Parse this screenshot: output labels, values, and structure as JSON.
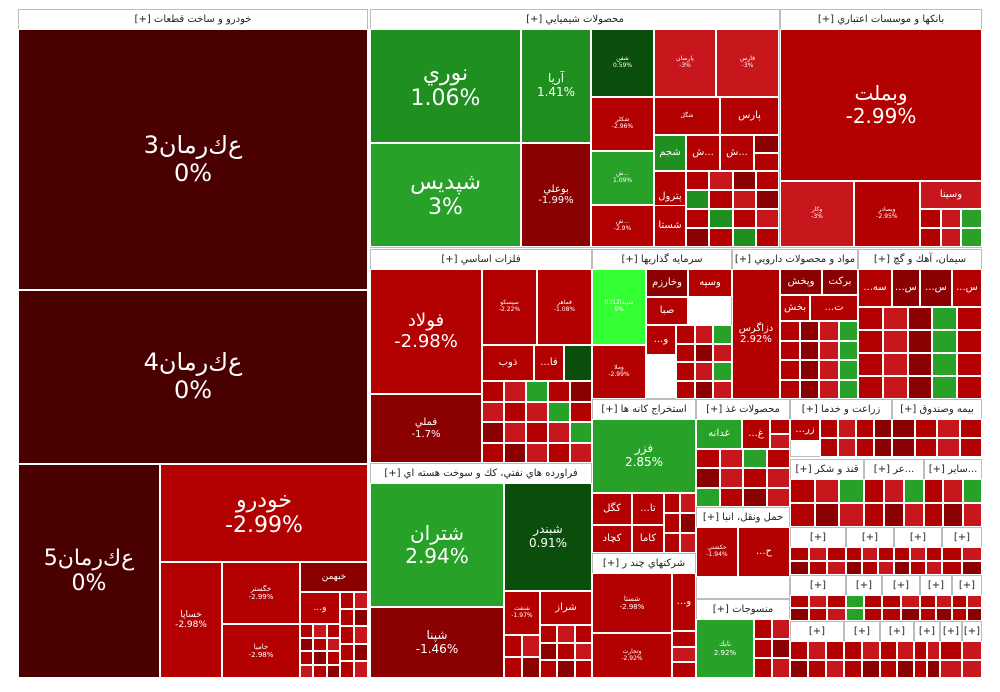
{
  "chart_data": {
    "type": "treemap",
    "colors": {
      "strong_negative": "#b30000",
      "negative": "#c8161d",
      "mid_negative": "#8b0000",
      "zero": "#4a0000",
      "positive": "#1f8f1f",
      "strong_positive": "#27a127",
      "neon_positive": "#33ff33",
      "dark_positive": "#0b4d0b"
    },
    "sectors": [
      {
        "id": "auto",
        "title": "خودرو و ساخت قطعات [+]",
        "tiles": [
          {
            "id": "t-khrman3",
            "name": "ﻉﻙﺭﻣﺎﻥ3",
            "value": "0%",
            "font": 24
          },
          {
            "id": "t-khrman4",
            "name": "ﻉﻙﺭﻣﺎﻥ4",
            "value": "0%",
            "font": 24
          },
          {
            "id": "t-khrman5",
            "name": "ﻉﻙﺭﻣﺎﻥ5",
            "value": "0%",
            "font": 22
          },
          {
            "id": "t-khodro",
            "name": "خودرو",
            "value": "-2.99%",
            "font": 22
          },
          {
            "id": "t-khsapa",
            "name": "خساپا",
            "value": "-2.98%",
            "font": 9
          },
          {
            "id": "t-khgostar",
            "name": "خگستر",
            "value": "-2.99%",
            "font": 7
          },
          {
            "id": "t-khamya",
            "name": "خاميا",
            "value": "-2.98%",
            "font": 7
          },
          {
            "id": "t-khbahman",
            "name": "خبهمن",
            "value": "",
            "font": 9
          },
          {
            "id": "t-auto-dots",
            "name": "...و",
            "value": "",
            "font": 9
          }
        ]
      },
      {
        "id": "chem",
        "title": "محصولات شيميايي [+]",
        "tiles": [
          {
            "id": "t-nouri",
            "name": "نوري",
            "value": "1.06%",
            "font": 22
          },
          {
            "id": "t-aria",
            "name": "آريا",
            "value": "1.41%",
            "font": 12
          },
          {
            "id": "t-shpdis",
            "name": "شپديس",
            "value": "3%",
            "font": 22
          },
          {
            "id": "t-booali",
            "name": "بوعلي",
            "value": "-1.99%",
            "font": 10
          },
          {
            "id": "t-shsina",
            "name": "شفن",
            "value": "0.59%",
            "font": 6
          },
          {
            "id": "t-parsan",
            "name": "پارسان",
            "value": "-3%",
            "font": 6
          },
          {
            "id": "t-fars",
            "name": "فارس",
            "value": "-3%",
            "font": 6
          },
          {
            "id": "t-shkor",
            "name": "شكلر",
            "value": "-2.96%",
            "font": 6
          },
          {
            "id": "t-shgol",
            "name": "شگل",
            "value": "",
            "font": 6
          },
          {
            "id": "t-pars",
            "name": "پارس",
            "value": "",
            "font": 10
          },
          {
            "id": "t-shj",
            "name": "شجم",
            "value": "",
            "font": 10
          },
          {
            "id": "t-sh2",
            "name": "ش...",
            "value": "",
            "font": 10
          },
          {
            "id": "t-sh3",
            "name": "ش...",
            "value": "",
            "font": 10
          },
          {
            "id": "t-sh4",
            "name": "ش...",
            "value": "1.09%",
            "font": 6
          },
          {
            "id": "t-petrol",
            "name": "پترول",
            "value": "",
            "font": 10
          },
          {
            "id": "t-shsta",
            "name": "شستا",
            "value": "",
            "font": 10
          },
          {
            "id": "t-sh5",
            "name": "ش...",
            "value": "-2.9%",
            "font": 6
          }
        ]
      },
      {
        "id": "bank",
        "title": "بانكها و موسسات اعتباري [+]",
        "tiles": [
          {
            "id": "t-vbmellat",
            "name": "وبملت",
            "value": "-2.99%",
            "font": 20
          },
          {
            "id": "t-vsina",
            "name": "وسينا",
            "value": "",
            "font": 10
          },
          {
            "id": "t-vkar",
            "name": "وكار",
            "value": "-3%",
            "font": 6
          },
          {
            "id": "t-vbsader",
            "name": "وبصادر",
            "value": "-2.95%",
            "font": 6
          }
        ]
      },
      {
        "id": "metal",
        "title": "فلزات اساسي [+]",
        "tiles": [
          {
            "id": "t-foolad",
            "name": "فولاد",
            "value": "-2.98%",
            "font": 18
          },
          {
            "id": "t-fameli",
            "name": "فملي",
            "value": "-1.7%",
            "font": 10
          },
          {
            "id": "t-fsepahan",
            "name": "سپسكو",
            "value": "-2.22%",
            "font": 6
          },
          {
            "id": "t-fmaher",
            "name": "فماهر",
            "value": "-1.08%",
            "font": 6
          },
          {
            "id": "t-zob",
            "name": "ذوب",
            "value": "",
            "font": 10
          },
          {
            "id": "t-fa",
            "name": "...فا",
            "value": "",
            "font": 10
          }
        ]
      },
      {
        "id": "invest",
        "title": "سرمايه گذاريها [+]",
        "tiles": [
          {
            "id": "t-kharazm",
            "name": "وخارزم",
            "value": "",
            "font": 10
          },
          {
            "id": "t-vsapa",
            "name": "وسپه",
            "value": "",
            "font": 10
          },
          {
            "id": "t-seda",
            "name": "سپيدا0312",
            "value": "5%",
            "font": 6
          },
          {
            "id": "t-vsabha",
            "name": "صبا",
            "value": "",
            "font": 10
          },
          {
            "id": "t-vsa",
            "name": "...و",
            "value": "",
            "font": 10
          },
          {
            "id": "t-vmila",
            "name": "وملا",
            "value": "-2.99%",
            "font": 6
          }
        ]
      },
      {
        "id": "pharma",
        "title": "مواد و محصولات دارويي [+]",
        "tiles": [
          {
            "id": "t-dzagros",
            "name": "دزاگرس",
            "value": "2.92%",
            "font": 10
          },
          {
            "id": "t-vpakhsh",
            "name": "وپخش",
            "value": "",
            "font": 10
          },
          {
            "id": "t-barkat",
            "name": "بركت",
            "value": "",
            "font": 10
          },
          {
            "id": "t-dpakhsh",
            "name": "بخش",
            "value": "",
            "font": 10
          },
          {
            "id": "t-dt",
            "name": "...ت",
            "value": "",
            "font": 10
          }
        ]
      },
      {
        "id": "cement",
        "title": "سيمان، آهك و گچ [+]",
        "tiles": [
          {
            "id": "t-sseh",
            "name": "...سه",
            "value": "",
            "font": 10
          },
          {
            "id": "t-ss1",
            "name": "...س",
            "value": "",
            "font": 10
          },
          {
            "id": "t-ss2",
            "name": "...س",
            "value": "",
            "font": 10
          },
          {
            "id": "t-ss3",
            "name": "...س",
            "value": "",
            "font": 10
          }
        ]
      },
      {
        "id": "mining",
        "title": "استخراج كانه ها [+]",
        "tiles": [
          {
            "id": "t-fazar",
            "name": "فزر",
            "value": "2.85%",
            "font": 12
          },
          {
            "id": "t-kgol",
            "name": "كگل",
            "value": "",
            "font": 10
          },
          {
            "id": "t-kta",
            "name": "...تا",
            "value": "",
            "font": 10
          },
          {
            "id": "t-kchad",
            "name": "كچاد",
            "value": "",
            "font": 10
          },
          {
            "id": "t-kama",
            "name": "كاما",
            "value": "",
            "font": 10
          }
        ]
      },
      {
        "id": "oil",
        "title": "فراورده هاي نفتي، كك و سوخت هسته اي [+]",
        "tiles": [
          {
            "id": "t-shetran",
            "name": "شتران",
            "value": "2.94%",
            "font": 20
          },
          {
            "id": "t-shbandar",
            "name": "شبندر",
            "value": "0.91%",
            "font": 12
          },
          {
            "id": "t-shiraz",
            "name": "شراز",
            "value": "",
            "font": 10
          },
          {
            "id": "t-shsina2",
            "name": "شپنا",
            "value": "-1.46%",
            "font": 12
          },
          {
            "id": "t-shgoil",
            "name": "شنفت",
            "value": "-1.97%",
            "font": 6
          }
        ]
      },
      {
        "id": "food",
        "title": "محصولات غذ [+]",
        "tiles": [
          {
            "id": "t-ghadaneh",
            "name": "غدانه",
            "value": "",
            "font": 10
          },
          {
            "id": "t-ghj",
            "name": "...غ",
            "value": "",
            "font": 10
          }
        ]
      },
      {
        "id": "agri",
        "title": "زراعت و خدما [+]",
        "tiles": [
          {
            "id": "t-zar",
            "name": "...زر",
            "value": "",
            "font": 10
          }
        ]
      },
      {
        "id": "ins",
        "title": "بيمه وصندوق [+]",
        "tiles": []
      },
      {
        "id": "transport",
        "title": "حمل ونقل، انبا [+]",
        "tiles": [
          {
            "id": "t-hj",
            "name": "...ح",
            "value": "",
            "font": 10
          },
          {
            "id": "t-hkesh",
            "name": "حكشتي",
            "value": "-1.94%",
            "font": 6
          }
        ]
      },
      {
        "id": "multi",
        "title": "شركتهاي چند ر [+]",
        "tiles": [
          {
            "id": "t-vsasta",
            "name": "شستا",
            "value": "-2.98%",
            "font": 7
          },
          {
            "id": "t-vtejarat",
            "name": "وتجارت",
            "value": "-2.92%",
            "font": 6
          },
          {
            "id": "t-multi-dots",
            "name": "...و",
            "value": "",
            "font": 10
          }
        ]
      },
      {
        "id": "textile",
        "title": "منسوجات [+]",
        "tiles": [
          {
            "id": "t-nabank",
            "name": "نابك",
            "value": "2.92%",
            "font": 7
          }
        ]
      },
      {
        "id": "sugar",
        "title": "قند و شكر [+]",
        "tiles": []
      },
      {
        "id": "s-taz",
        "title": "...عر [+]",
        "tiles": []
      },
      {
        "id": "s-sayer",
        "title": "...ساير [+]",
        "tiles": []
      },
      {
        "id": "s-small-1",
        "title": "[+]",
        "tiles": []
      },
      {
        "id": "s-small-2",
        "title": "[+]",
        "tiles": []
      },
      {
        "id": "s-small-3",
        "title": "[+]",
        "tiles": []
      },
      {
        "id": "s-small-4",
        "title": "[+]",
        "tiles": []
      },
      {
        "id": "s-small-5",
        "title": "[+]",
        "tiles": []
      },
      {
        "id": "s-small-6",
        "title": "[+]",
        "tiles": []
      },
      {
        "id": "s-small-7",
        "title": "[+]",
        "tiles": []
      },
      {
        "id": "s-small-8",
        "title": "[+]",
        "tiles": []
      },
      {
        "id": "s-small-9",
        "title": "[+]",
        "tiles": []
      },
      {
        "id": "s-small-10",
        "title": "[+]",
        "tiles": []
      },
      {
        "id": "s-small-11",
        "title": "[+]",
        "tiles": []
      },
      {
        "id": "s-small-12",
        "title": "[+]",
        "tiles": []
      },
      {
        "id": "s-small-13",
        "title": "[+]",
        "tiles": []
      },
      {
        "id": "s-small-14",
        "title": "[+]",
        "tiles": []
      },
      {
        "id": "s-small-15",
        "title": "[+]",
        "tiles": []
      }
    ]
  }
}
